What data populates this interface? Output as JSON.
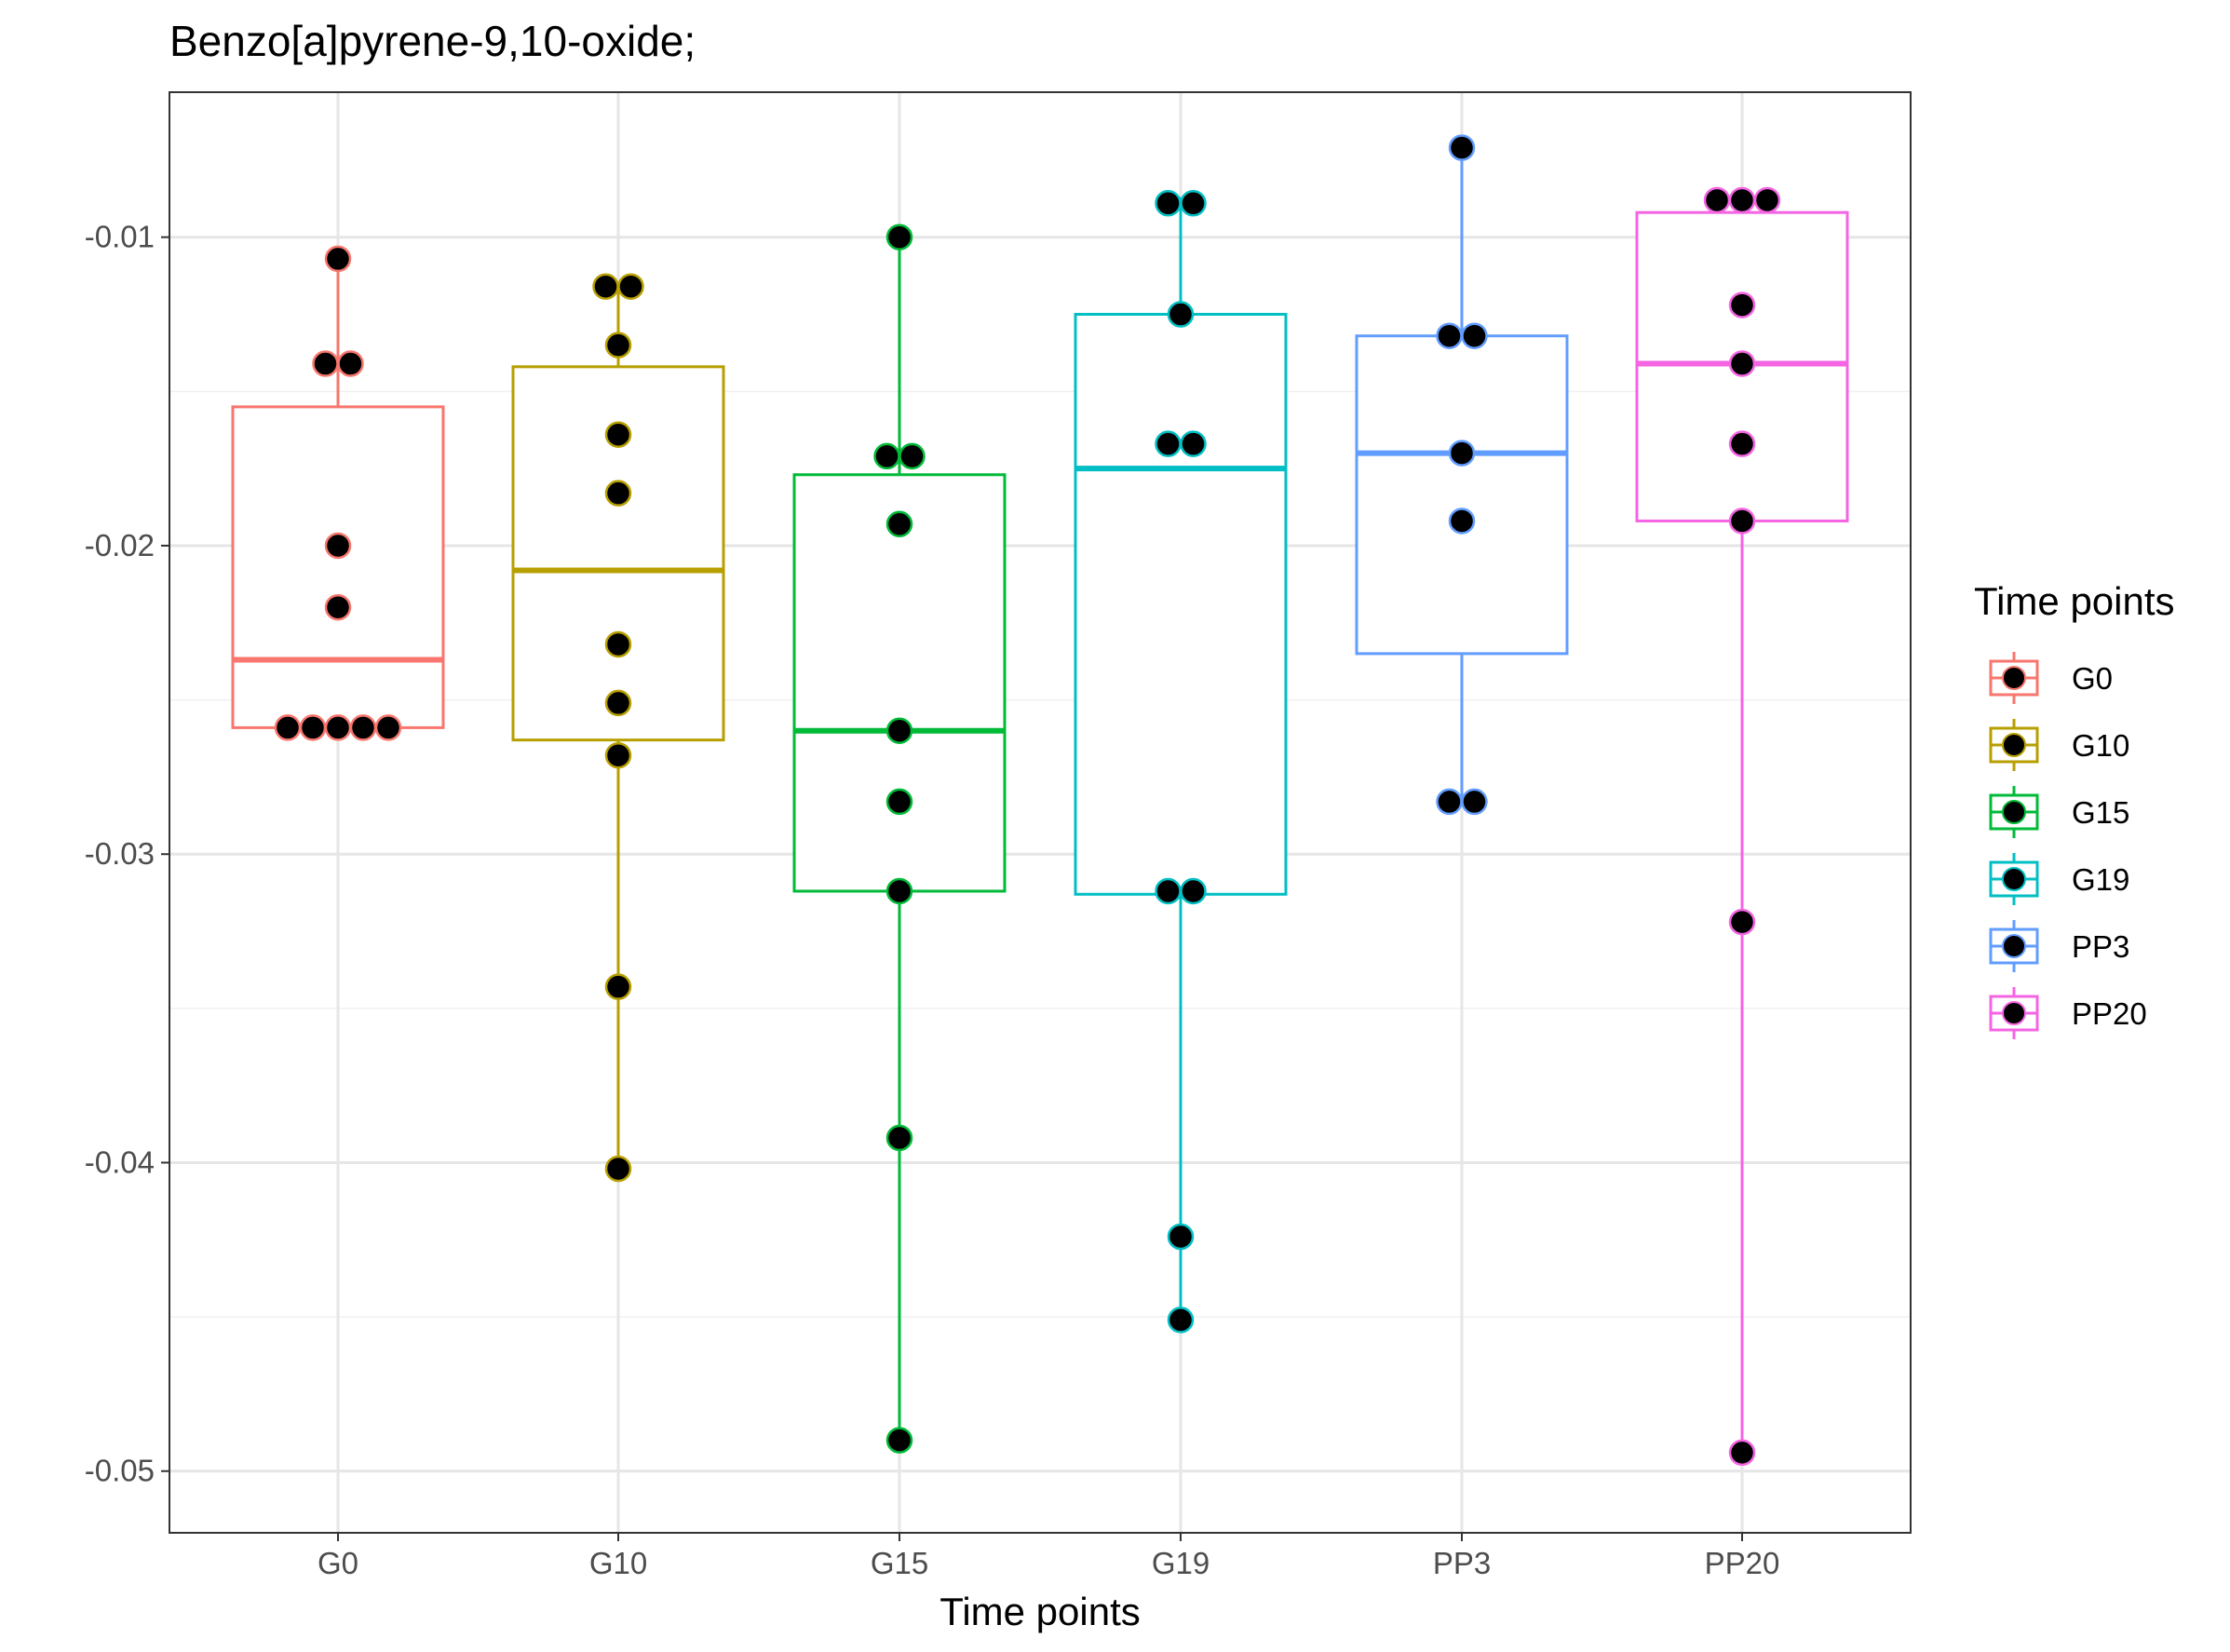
{
  "chart_data": {
    "type": "box",
    "title": "Benzo[a]pyrene-9,10-oxide;",
    "xlabel": "Time points",
    "ylabel": "",
    "categories": [
      "G0",
      "G10",
      "G15",
      "G19",
      "PP3",
      "PP20"
    ],
    "ylim": [
      -0.052,
      -0.0053
    ],
    "yticks": [
      -0.01,
      -0.02,
      -0.03,
      -0.04,
      -0.05
    ],
    "ytick_labels": [
      "-0.01",
      "-0.02",
      "-0.03",
      "-0.04",
      "-0.05"
    ],
    "grid": true,
    "legend": {
      "title": "Time points",
      "position": "right",
      "entries": [
        "G0",
        "G10",
        "G15",
        "G19",
        "PP3",
        "PP20"
      ]
    },
    "colors": [
      "#F8766D",
      "#B79F00",
      "#00BA38",
      "#00BFC4",
      "#619CFF",
      "#F564E3"
    ],
    "point_color": "#000000",
    "series": [
      {
        "name": "G0",
        "box": {
          "min": -0.0259,
          "q1": -0.0259,
          "median": -0.0237,
          "q3": -0.0155,
          "max": -0.0107
        },
        "points": [
          -0.0107,
          -0.0141,
          -0.0141,
          -0.02,
          -0.022,
          -0.0259,
          -0.0259,
          -0.0259,
          -0.0259,
          -0.0259
        ]
      },
      {
        "name": "G10",
        "box": {
          "min": -0.0402,
          "q1": -0.0263,
          "median": -0.0208,
          "q3": -0.0142,
          "max": -0.0116
        },
        "points": [
          -0.0116,
          -0.0116,
          -0.0135,
          -0.0164,
          -0.0183,
          -0.0232,
          -0.0251,
          -0.0268,
          -0.0343,
          -0.0402
        ]
      },
      {
        "name": "G15",
        "box": {
          "min": -0.049,
          "q1": -0.0312,
          "median": -0.026,
          "q3": -0.0177,
          "max": -0.01
        },
        "points": [
          -0.01,
          -0.0171,
          -0.0171,
          -0.0193,
          -0.026,
          -0.0283,
          -0.0312,
          -0.0392,
          -0.049
        ]
      },
      {
        "name": "G19",
        "box": {
          "min": -0.0451,
          "q1": -0.0313,
          "median": -0.0175,
          "q3": -0.0125,
          "max": -0.0087
        },
        "points": [
          -0.0089,
          -0.0089,
          -0.0125,
          -0.0167,
          -0.0167,
          -0.0312,
          -0.0312,
          -0.0424,
          -0.0451
        ]
      },
      {
        "name": "PP3",
        "box": {
          "min": -0.0283,
          "q1": -0.0235,
          "median": -0.017,
          "q3": -0.0132,
          "max": -0.0071
        },
        "points": [
          -0.0071,
          -0.0132,
          -0.0132,
          -0.017,
          -0.0192,
          -0.0283,
          -0.0283
        ]
      },
      {
        "name": "PP20",
        "box": {
          "min": -0.0494,
          "q1": -0.0192,
          "median": -0.0141,
          "q3": -0.0092,
          "max": -0.0088
        },
        "points": [
          -0.0088,
          -0.0088,
          -0.0088,
          -0.0122,
          -0.0141,
          -0.0167,
          -0.0192,
          -0.0322,
          -0.0494
        ]
      }
    ]
  }
}
